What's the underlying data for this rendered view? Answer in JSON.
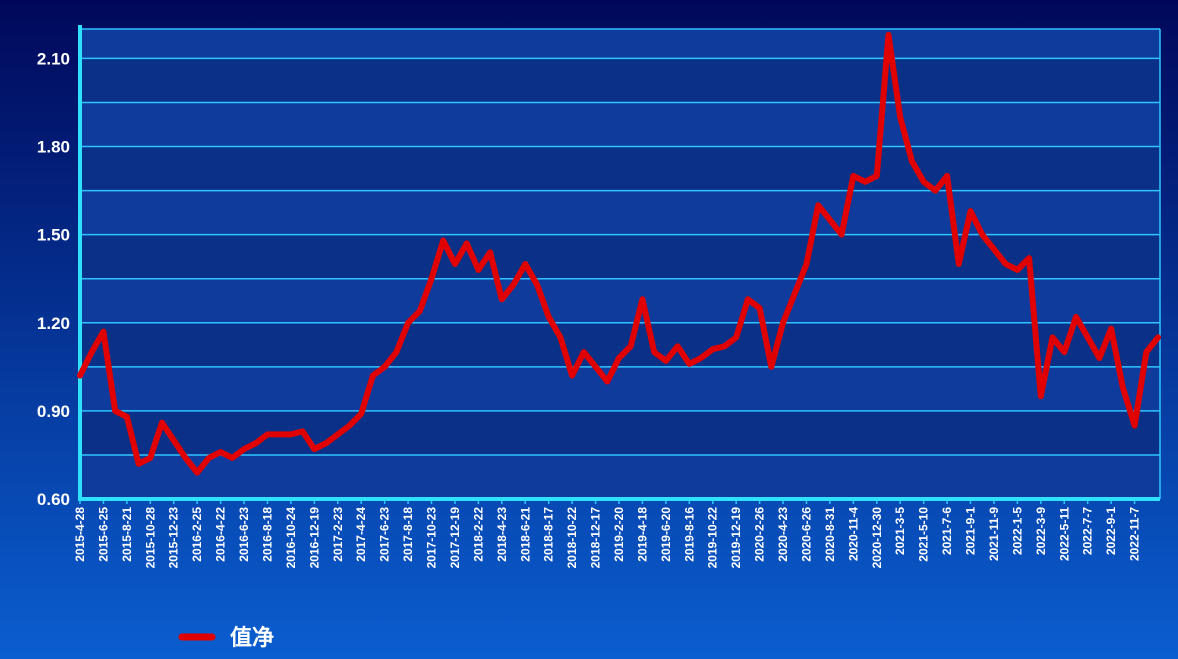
{
  "chart_data": {
    "type": "line",
    "categories": [
      "2015-4-28",
      null,
      "2015-6-25",
      null,
      "2015-8-21",
      null,
      "2015-10-28",
      null,
      "2015-12-23",
      null,
      "2016-2-25",
      null,
      "2016-4-22",
      null,
      "2016-6-23",
      null,
      "2016-8-18",
      null,
      "2016-10-24",
      null,
      "2016-12-19",
      null,
      "2017-2-23",
      null,
      "2017-4-24",
      null,
      "2017-6-23",
      null,
      "2017-8-18",
      null,
      "2017-10-23",
      null,
      "2017-12-19",
      null,
      "2018-2-22",
      null,
      "2018-4-23",
      null,
      "2018-6-21",
      null,
      "2018-8-17",
      null,
      "2018-10-22",
      null,
      "2018-12-17",
      null,
      "2019-2-20",
      null,
      "2019-4-18",
      null,
      "2019-6-20",
      null,
      "2019-8-16",
      null,
      "2019-10-22",
      null,
      "2019-12-19",
      null,
      "2020-2-26",
      null,
      "2020-4-23",
      null,
      "2020-6-26",
      null,
      "2020-8-31",
      null,
      "2020-11-4",
      null,
      "2020-12-30",
      null,
      "2021-3-5",
      null,
      "2021-5-10",
      null,
      "2021-7-6",
      null,
      "2021-9-1",
      null,
      "2021-11-9",
      null,
      "2022-1-5",
      null,
      "2022-3-9",
      null,
      "2022-5-11",
      null,
      "2022-7-7",
      null,
      "2022-9-1",
      null,
      "2022-11-7",
      null,
      null
    ],
    "series": [
      {
        "name": "值净",
        "color": "#e00000",
        "values": [
          1.02,
          1.1,
          1.17,
          0.9,
          0.88,
          0.72,
          0.74,
          0.86,
          0.8,
          0.74,
          0.69,
          0.74,
          0.76,
          0.74,
          0.77,
          0.79,
          0.82,
          0.82,
          0.82,
          0.83,
          0.77,
          0.79,
          0.82,
          0.85,
          0.89,
          1.02,
          1.05,
          1.1,
          1.2,
          1.24,
          1.35,
          1.48,
          1.4,
          1.47,
          1.38,
          1.44,
          1.28,
          1.33,
          1.4,
          1.33,
          1.22,
          1.15,
          1.02,
          1.1,
          1.05,
          1.0,
          1.08,
          1.12,
          1.28,
          1.1,
          1.07,
          1.12,
          1.06,
          1.08,
          1.11,
          1.12,
          1.15,
          1.28,
          1.25,
          1.05,
          1.2,
          1.3,
          1.4,
          1.6,
          1.55,
          1.5,
          1.7,
          1.68,
          1.7,
          2.18,
          1.9,
          1.75,
          1.68,
          1.65,
          1.7,
          1.4,
          1.58,
          1.5,
          1.45,
          1.4,
          1.38,
          1.42,
          0.95,
          1.15,
          1.1,
          1.22,
          1.15,
          1.08,
          1.18,
          0.98,
          0.85,
          1.1,
          1.15
        ]
      }
    ],
    "ylim": [
      0.6,
      2.2
    ],
    "yticks": [
      {
        "value": 0.6,
        "label": "0.60"
      },
      {
        "value": 0.9,
        "label": "0.90"
      },
      {
        "value": 1.2,
        "label": "1.20"
      },
      {
        "value": 1.5,
        "label": "1.50"
      },
      {
        "value": 1.8,
        "label": "1.80"
      },
      {
        "value": 2.1,
        "label": "2.10"
      }
    ],
    "minor_yticks": [
      0.75,
      1.05,
      1.35,
      1.65,
      1.95
    ],
    "grid": true
  }
}
